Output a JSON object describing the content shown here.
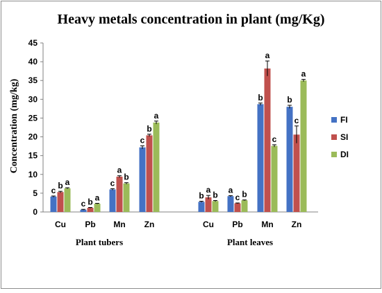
{
  "chart_data": {
    "type": "bar",
    "title": "Heavy metals concentration in plant (mg/Kg)",
    "ylabel": "Concentration (mg/kg)",
    "xlabel": "",
    "ylim": [
      0,
      45
    ],
    "yticks": [
      0,
      5,
      10,
      15,
      20,
      25,
      30,
      35,
      40,
      45
    ],
    "grid": false,
    "legend_position": "right",
    "groups": [
      {
        "label": "Plant tubers",
        "categories": [
          "Cu",
          "Pb",
          "Mn",
          "Zn"
        ]
      },
      {
        "label": "Plant leaves",
        "categories": [
          "Cu",
          "Pb",
          "Mn",
          "Zn"
        ]
      }
    ],
    "series": [
      {
        "name": "FI",
        "color": "#4472C4",
        "values": [
          4.1,
          0.6,
          6.0,
          17.2,
          2.7,
          4.2,
          28.7,
          28.0
        ],
        "errors": [
          0.15,
          0.1,
          0.2,
          0.4,
          0.15,
          0.15,
          0.3,
          0.4
        ],
        "significance": [
          "c",
          "c",
          "c",
          "c",
          "b",
          "a",
          "b",
          "b"
        ]
      },
      {
        "name": "SI",
        "color": "#C0504D",
        "values": [
          5.3,
          1.1,
          9.4,
          20.4,
          3.9,
          2.3,
          38.2,
          20.6
        ],
        "errors": [
          0.2,
          0.1,
          0.25,
          0.3,
          0.5,
          0.1,
          2.0,
          2.3
        ],
        "significance": [
          "b",
          "b",
          "a",
          "b",
          "a",
          "c",
          "a",
          "c"
        ]
      },
      {
        "name": "DI",
        "color": "#9BBB59",
        "values": [
          6.3,
          2.2,
          7.6,
          23.8,
          2.9,
          3.1,
          17.6,
          35.0
        ],
        "errors": [
          0.15,
          0.1,
          0.2,
          0.4,
          0.15,
          0.1,
          0.3,
          0.3
        ],
        "significance": [
          "a",
          "a",
          "b",
          "a",
          "b",
          "b",
          "c",
          "a"
        ]
      }
    ]
  }
}
